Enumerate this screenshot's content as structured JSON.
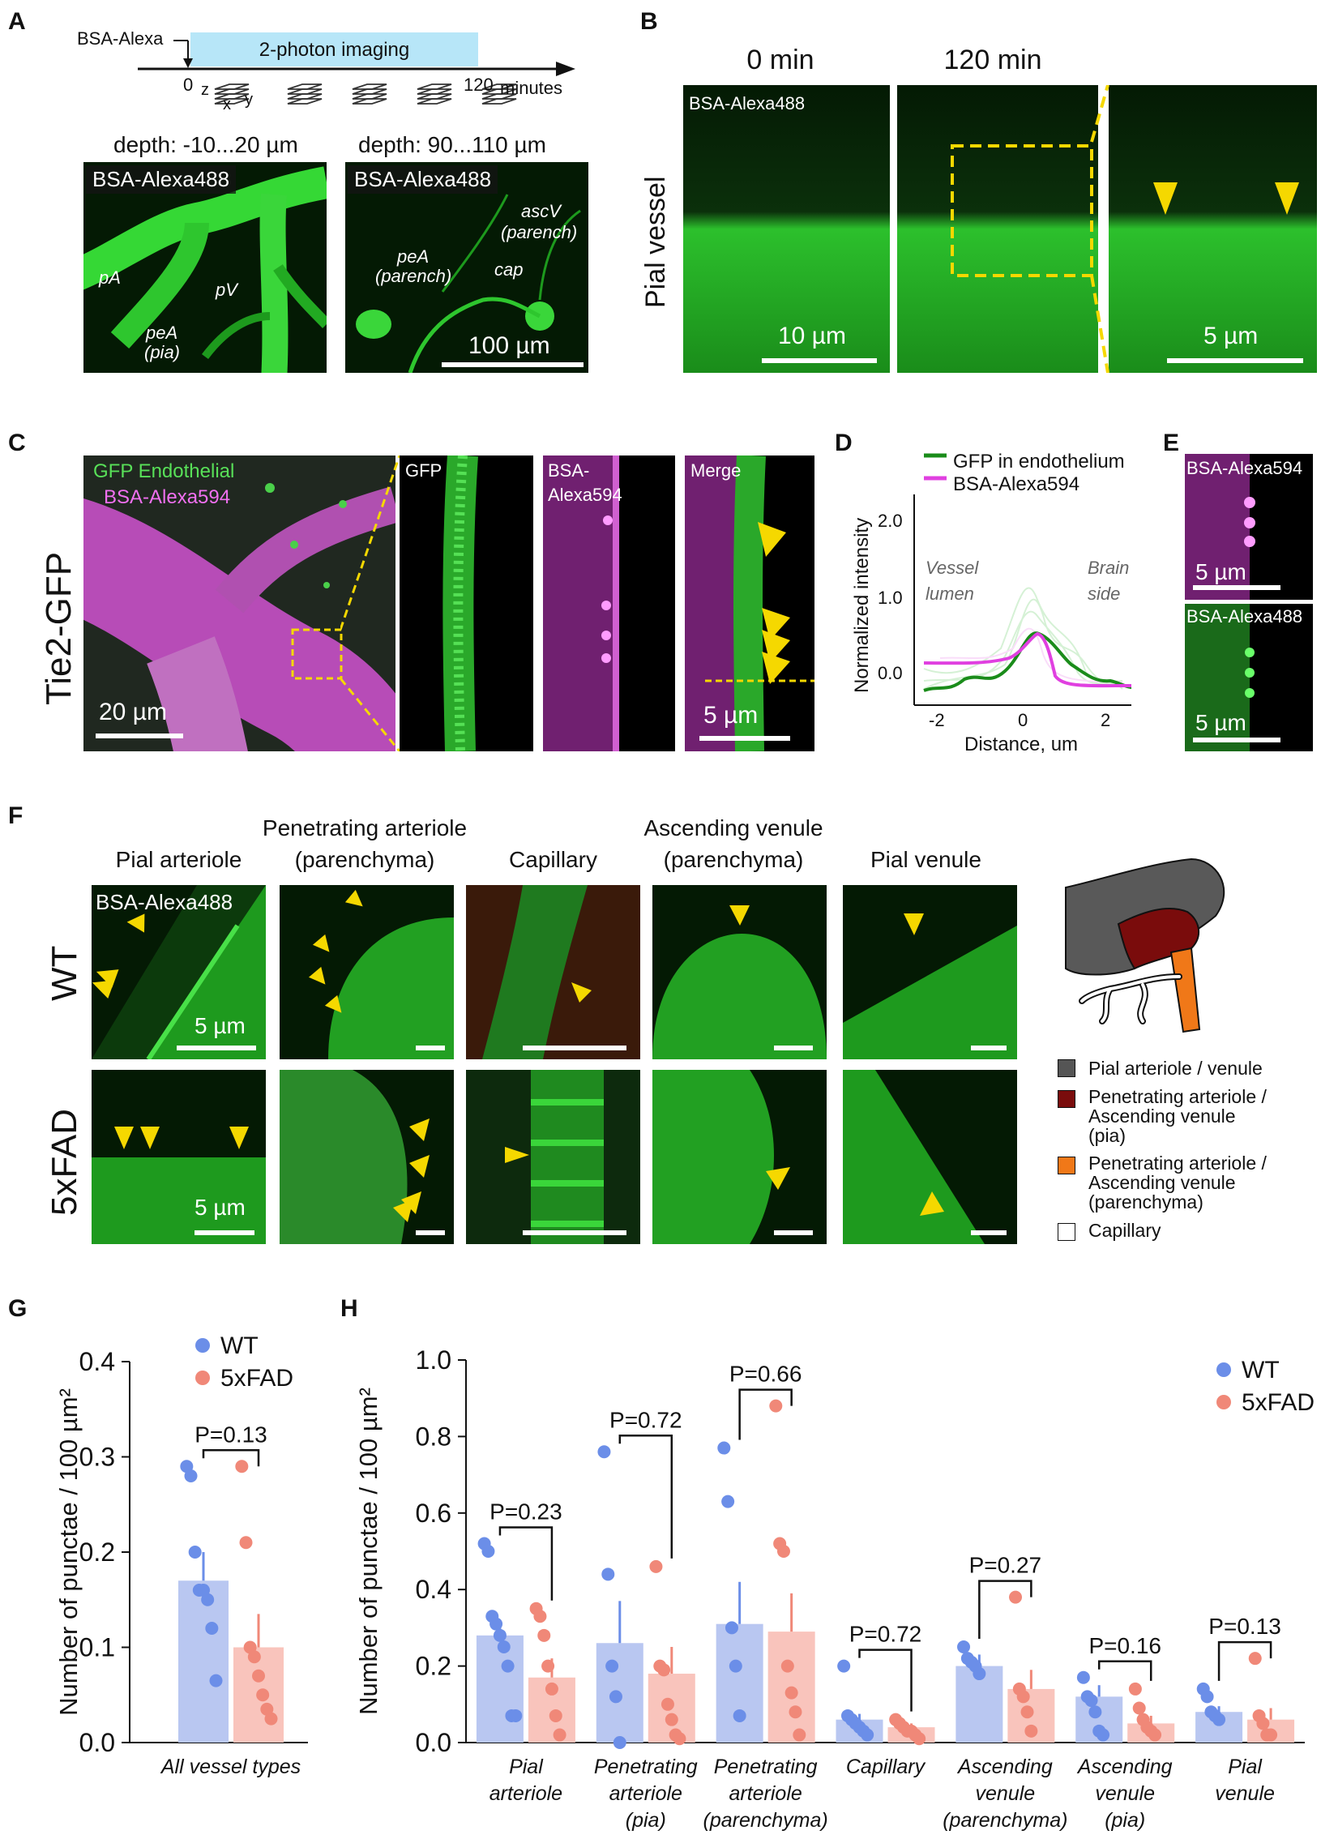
{
  "panels": {
    "A": "A",
    "B": "B",
    "C": "C",
    "D": "D",
    "E": "E",
    "F": "F",
    "G": "G",
    "H": "H"
  },
  "panelA": {
    "tracer": "BSA-Alexa",
    "imaging": "2-photon imaging",
    "t0": "0",
    "t1": "120",
    "unit": "minutes",
    "ax_z": "z",
    "ax_x": "x",
    "ax_y": "y",
    "depth1": "depth: -10...20 µm",
    "depth2": "depth: 90...110 µm",
    "tag": "BSA-Alexa488",
    "labels1": [
      "pA",
      "pV",
      "peA",
      "(pia)"
    ],
    "labels2": [
      "ascV",
      "(parench)",
      "peA",
      "(parench)",
      "cap"
    ],
    "scale": "100 µm"
  },
  "panelB": {
    "h0": "0 min",
    "h1": "120 min",
    "side": "Pial vessel",
    "tag": "BSA-Alexa488",
    "scale1": "10 µm",
    "scale2": "5 µm"
  },
  "panelC": {
    "side": "Tie2-GFP",
    "tag1": "GFP Endothelial",
    "tag2": "BSA-Alexa594",
    "scale": "20 µm",
    "sub1": "GFP",
    "sub2a": "BSA-",
    "sub2b": "Alexa594",
    "sub3": "Merge",
    "scale2": "5 µm"
  },
  "panelD": {
    "legend": [
      "GFP in endothelium",
      "BSA-Alexa594"
    ],
    "ylabel": "Normalized intensity",
    "xlabel": "Distance, um",
    "left_note": [
      "Vessel",
      "lumen"
    ],
    "right_note": [
      "Brain",
      "side"
    ],
    "yticks": [
      "0.0",
      "1.0",
      "2.0"
    ],
    "xticks": [
      "-2",
      "0",
      "2"
    ]
  },
  "panelE": {
    "tag1": "BSA-Alexa594",
    "tag2": "BSA-Alexa488",
    "scale": "5 µm"
  },
  "panelF": {
    "cols": [
      [
        "Pial arteriole"
      ],
      [
        "Penetrating arteriole",
        "(parenchyma)"
      ],
      [
        "Capillary"
      ],
      [
        "Ascending venule",
        "(parenchyma)"
      ],
      [
        "Pial venule"
      ]
    ],
    "rows": [
      "WT",
      "5xFAD"
    ],
    "tag": "BSA-Alexa488",
    "scale": "5 µm",
    "legend": [
      {
        "color": "#555555",
        "lines": [
          "Pial arteriole / venule"
        ]
      },
      {
        "color": "#7a0c0c",
        "lines": [
          "Penetrating arteriole /",
          "Ascending venule",
          "(pia)"
        ]
      },
      {
        "color": "#f07818",
        "lines": [
          "Penetrating arteriole /",
          "Ascending venule",
          "(parenchyma)"
        ]
      },
      {
        "color": "#ffffff",
        "lines": [
          "Capillary"
        ]
      }
    ]
  },
  "chart_data": [
    {
      "type": "bar",
      "panel": "G",
      "categories": [
        "All vessel types"
      ],
      "series": [
        {
          "name": "WT",
          "values": [
            0.17
          ],
          "sem": [
            0.03
          ],
          "points": [
            [
              0.29,
              0.28,
              0.2,
              0.16,
              0.16,
              0.15,
              0.12,
              0.065
            ]
          ],
          "color": "#6b8ee8"
        },
        {
          "name": "5xFAD",
          "values": [
            0.1
          ],
          "sem": [
            0.035
          ],
          "points": [
            [
              0.29,
              0.21,
              0.1,
              0.09,
              0.07,
              0.05,
              0.035,
              0.025
            ]
          ],
          "color": "#f08878"
        }
      ],
      "ylabel": "Number of punctae / 100 µm²",
      "ylim": [
        0,
        0.4
      ],
      "yticks": [
        "0.0",
        "0.1",
        "0.2",
        "0.3",
        "0.4"
      ],
      "pvalues": [
        "P=0.13"
      ],
      "legend": "top"
    },
    {
      "type": "bar",
      "panel": "H",
      "categories": [
        [
          "Pial",
          "arteriole"
        ],
        [
          "Penetrating",
          "arteriole",
          "(pia)"
        ],
        [
          "Penetrating",
          "arteriole",
          "(parenchyma)"
        ],
        [
          "Capillary"
        ],
        [
          "Ascending",
          "venule",
          "(parenchyma)"
        ],
        [
          "Ascending",
          "venule",
          "(pia)"
        ],
        [
          "Pial",
          "venule"
        ]
      ],
      "series": [
        {
          "name": "WT",
          "values": [
            0.28,
            0.26,
            0.31,
            0.06,
            0.2,
            0.12,
            0.08
          ],
          "sem": [
            0.04,
            0.11,
            0.11,
            0.015,
            0.03,
            0.03,
            0.015
          ],
          "points": [
            [
              0.52,
              0.5,
              0.33,
              0.31,
              0.28,
              0.25,
              0.2,
              0.07,
              0.07
            ],
            [
              0.76,
              0.44,
              0.2,
              0.12,
              0.0
            ],
            [
              0.77,
              0.63,
              0.3,
              0.2,
              0.07
            ],
            [
              0.2,
              0.07,
              0.06,
              0.05,
              0.04,
              0.03,
              0.02
            ],
            [
              0.25,
              0.22,
              0.21,
              0.2,
              0.18
            ],
            [
              0.17,
              0.12,
              0.11,
              0.08,
              0.03,
              0.02
            ],
            [
              0.14,
              0.12,
              0.08,
              0.07,
              0.06
            ]
          ],
          "color": "#6b8ee8"
        },
        {
          "name": "5xFAD",
          "values": [
            0.17,
            0.18,
            0.29,
            0.04,
            0.14,
            0.05,
            0.06
          ],
          "sem": [
            0.05,
            0.07,
            0.1,
            0.01,
            0.05,
            0.02,
            0.03
          ],
          "points": [
            [
              0.35,
              0.33,
              0.28,
              0.2,
              0.14,
              0.07,
              0.02
            ],
            [
              0.46,
              0.2,
              0.19,
              0.1,
              0.06,
              0.02,
              0.01
            ],
            [
              0.88,
              0.52,
              0.5,
              0.2,
              0.13,
              0.08,
              0.02
            ],
            [
              0.06,
              0.05,
              0.04,
              0.03,
              0.03,
              0.02,
              0.01
            ],
            [
              0.38,
              0.14,
              0.12,
              0.08,
              0.03
            ],
            [
              0.14,
              0.09,
              0.06,
              0.04,
              0.03,
              0.02
            ],
            [
              0.22,
              0.07,
              0.05,
              0.02,
              0.02
            ]
          ],
          "color": "#f08878"
        }
      ],
      "ylabel": "Number of punctae / 100 µm²",
      "ylim": [
        0,
        1.0
      ],
      "yticks": [
        "0.0",
        "0.2",
        "0.4",
        "0.6",
        "0.8",
        "1.0"
      ],
      "pvalues": [
        "P=0.23",
        "P=0.72",
        "P=0.66",
        "P=0.72",
        "P=0.27",
        "P=0.16",
        "P=0.13"
      ],
      "legend": "top-right"
    }
  ]
}
